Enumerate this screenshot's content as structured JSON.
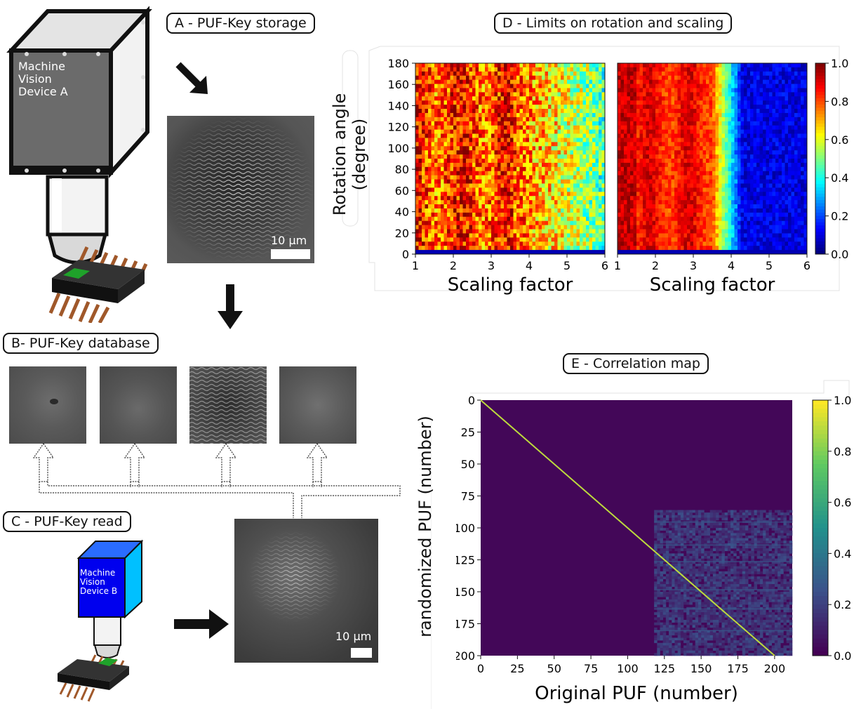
{
  "panels": {
    "a": {
      "label": "A - PUF-Key storage",
      "scale_bar": "10 μm"
    },
    "b": {
      "label": "B- PUF-Key database"
    },
    "c": {
      "label": "C - PUF-Key read",
      "scale_bar": "10 μm"
    },
    "d": {
      "label": "D - Limits on rotation and scaling"
    },
    "e": {
      "label": "E - Correlation map"
    }
  },
  "devices": {
    "a": {
      "label_lines": [
        "Machine",
        "Vision",
        "Device A"
      ]
    },
    "b": {
      "label_lines": [
        "Machine",
        "Vision",
        "Device B"
      ]
    }
  },
  "colors": {
    "device_a_front": "#6b6b6b",
    "device_a_side": "#f2f2f2",
    "device_b_front": "#0000ee",
    "device_b_side": "#00c0ff",
    "chip": "#141414",
    "chip_pad": "#1fa22a",
    "chip_pins": "#a0582a",
    "jet_high": "#8b0000",
    "jet_low": "#00007f",
    "viridis_high": "#fde725",
    "viridis_low": "#440154"
  },
  "chart_data": [
    {
      "type": "heatmap",
      "ylabel": "Rotation angle\n(degree)",
      "xlabel": "Scaling factor",
      "x_ticks": [
        "1",
        "2",
        "3",
        "4",
        "5",
        "6"
      ],
      "y_ticks": [
        "0",
        "20",
        "40",
        "60",
        "80",
        "100",
        "120",
        "140",
        "160",
        "180"
      ],
      "xlim": [
        1,
        6
      ],
      "ylim": [
        0,
        180
      ],
      "colorbar_ticks": [
        "0.0",
        "0.2",
        "0.4",
        "0.6",
        "0.8",
        "1.0"
      ],
      "colormap": "jet",
      "maps": [
        {
          "position": "left",
          "decay_start": 3.6,
          "decay_end": 6.0,
          "high_end_value": 0.45
        },
        {
          "position": "right",
          "decay_start": 3.5,
          "decay_end": 4.3,
          "high_end_value": 0.1
        }
      ]
    },
    {
      "type": "heatmap",
      "xlabel": "Original PUF (number)",
      "ylabel": "randomized PUF (number)",
      "x_ticks": [
        "0",
        "25",
        "50",
        "75",
        "100",
        "125",
        "150",
        "175",
        "200"
      ],
      "y_ticks": [
        "0",
        "25",
        "50",
        "75",
        "100",
        "125",
        "150",
        "175",
        "200"
      ],
      "xlim": [
        0,
        212
      ],
      "ylim": [
        0,
        200
      ],
      "colorbar_ticks": [
        "0.0",
        "0.2",
        "0.4",
        "0.6",
        "0.8",
        "1.0"
      ],
      "colormap": "viridis",
      "diagonal_value": 0.9,
      "background_value": 0.02
    }
  ]
}
